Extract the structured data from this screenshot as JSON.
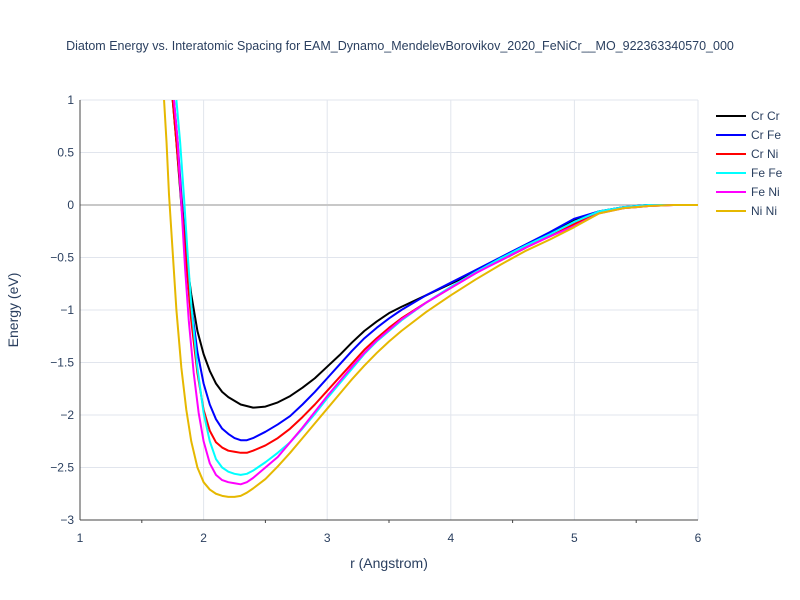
{
  "chart_data": {
    "type": "line",
    "title": "Diatom Energy vs. Interatomic Spacing for EAM_Dynamo_MendelevBorovikov_2020_FeNiCr__MO_922363340570_000",
    "xlabel": "r (Angstrom)",
    "ylabel": "Energy (eV)",
    "xlim": [
      1,
      6
    ],
    "ylim": [
      -3,
      1
    ],
    "x_ticks": [
      1,
      2,
      3,
      4,
      5,
      6
    ],
    "x_tick_labels": [
      "1",
      "2",
      "3",
      "4",
      "5",
      "6"
    ],
    "y_ticks": [
      1,
      0.5,
      0,
      -0.5,
      -1,
      -1.5,
      -2,
      -2.5,
      -3
    ],
    "y_tick_labels": [
      "1",
      "0.5",
      "0",
      "−0.5",
      "−1",
      "−1.5",
      "−2",
      "−2.5",
      "−3"
    ],
    "grid": true,
    "legend_position": "top-right",
    "series": [
      {
        "name": "Cr Cr",
        "color": "#000000",
        "x": [
          1.75,
          1.78,
          1.82,
          1.86,
          1.9,
          1.95,
          2.0,
          2.05,
          2.1,
          2.15,
          2.2,
          2.3,
          2.4,
          2.5,
          2.6,
          2.7,
          2.8,
          2.9,
          3.0,
          3.1,
          3.2,
          3.3,
          3.4,
          3.5,
          3.6,
          3.8,
          4.0,
          4.2,
          4.4,
          4.6,
          4.8,
          5.0,
          5.2,
          5.4,
          5.6,
          5.8,
          6.0
        ],
        "y": [
          1.0,
          0.6,
          0.0,
          -0.5,
          -0.85,
          -1.2,
          -1.42,
          -1.58,
          -1.7,
          -1.78,
          -1.83,
          -1.9,
          -1.93,
          -1.92,
          -1.88,
          -1.82,
          -1.74,
          -1.65,
          -1.54,
          -1.43,
          -1.31,
          -1.2,
          -1.11,
          -1.03,
          -0.97,
          -0.86,
          -0.75,
          -0.64,
          -0.53,
          -0.41,
          -0.28,
          -0.14,
          -0.06,
          -0.02,
          0.0,
          0.0,
          0.0
        ]
      },
      {
        "name": "Cr Fe",
        "color": "#0000ff",
        "x": [
          1.76,
          1.79,
          1.82,
          1.86,
          1.9,
          1.95,
          2.0,
          2.05,
          2.1,
          2.15,
          2.2,
          2.25,
          2.3,
          2.35,
          2.4,
          2.5,
          2.6,
          2.7,
          2.8,
          2.9,
          3.0,
          3.1,
          3.2,
          3.3,
          3.4,
          3.5,
          3.6,
          3.8,
          4.0,
          4.2,
          4.4,
          4.6,
          4.8,
          5.0,
          5.2,
          5.4,
          5.6,
          5.8,
          6.0
        ],
        "y": [
          1.0,
          0.6,
          0.1,
          -0.45,
          -0.95,
          -1.4,
          -1.7,
          -1.9,
          -2.04,
          -2.13,
          -2.18,
          -2.22,
          -2.24,
          -2.24,
          -2.22,
          -2.16,
          -2.09,
          -2.01,
          -1.9,
          -1.78,
          -1.65,
          -1.52,
          -1.39,
          -1.27,
          -1.17,
          -1.08,
          -1.0,
          -0.86,
          -0.74,
          -0.62,
          -0.5,
          -0.38,
          -0.26,
          -0.13,
          -0.06,
          -0.02,
          0.0,
          0.0,
          0.0
        ]
      },
      {
        "name": "Cr Ni",
        "color": "#ff0000",
        "x": [
          1.75,
          1.78,
          1.82,
          1.86,
          1.9,
          1.95,
          2.0,
          2.05,
          2.1,
          2.15,
          2.2,
          2.25,
          2.3,
          2.35,
          2.4,
          2.5,
          2.6,
          2.7,
          2.8,
          2.9,
          3.0,
          3.1,
          3.2,
          3.3,
          3.4,
          3.5,
          3.6,
          3.8,
          4.0,
          4.2,
          4.4,
          4.6,
          4.8,
          5.0,
          5.2,
          5.4,
          5.6,
          5.8,
          6.0
        ],
        "y": [
          1.0,
          0.6,
          0.05,
          -0.55,
          -1.1,
          -1.6,
          -1.95,
          -2.15,
          -2.26,
          -2.31,
          -2.34,
          -2.35,
          -2.36,
          -2.36,
          -2.34,
          -2.29,
          -2.22,
          -2.13,
          -2.02,
          -1.9,
          -1.77,
          -1.64,
          -1.51,
          -1.38,
          -1.27,
          -1.17,
          -1.08,
          -0.93,
          -0.79,
          -0.65,
          -0.52,
          -0.4,
          -0.3,
          -0.18,
          -0.07,
          -0.03,
          -0.01,
          0.0,
          0.0
        ]
      },
      {
        "name": "Fe Fe",
        "color": "#00ffff",
        "x": [
          1.78,
          1.81,
          1.84,
          1.87,
          1.9,
          1.95,
          2.0,
          2.05,
          2.1,
          2.15,
          2.2,
          2.25,
          2.3,
          2.35,
          2.4,
          2.5,
          2.6,
          2.7,
          2.8,
          2.9,
          3.0,
          3.1,
          3.2,
          3.3,
          3.4,
          3.5,
          3.6,
          3.8,
          4.0,
          4.2,
          4.4,
          4.6,
          4.8,
          5.0,
          5.2,
          5.4,
          5.6,
          5.8,
          6.0
        ],
        "y": [
          1.0,
          0.6,
          0.1,
          -0.45,
          -0.95,
          -1.55,
          -1.98,
          -2.25,
          -2.42,
          -2.5,
          -2.54,
          -2.56,
          -2.57,
          -2.56,
          -2.53,
          -2.45,
          -2.36,
          -2.26,
          -2.13,
          -1.99,
          -1.84,
          -1.7,
          -1.56,
          -1.42,
          -1.3,
          -1.2,
          -1.1,
          -0.93,
          -0.78,
          -0.64,
          -0.51,
          -0.39,
          -0.28,
          -0.16,
          -0.06,
          -0.02,
          0.0,
          0.0,
          0.0
        ]
      },
      {
        "name": "Fe Ni",
        "color": "#ff00ff",
        "x": [
          1.76,
          1.79,
          1.82,
          1.85,
          1.88,
          1.92,
          1.96,
          2.0,
          2.05,
          2.1,
          2.15,
          2.2,
          2.25,
          2.3,
          2.35,
          2.4,
          2.5,
          2.6,
          2.7,
          2.8,
          2.9,
          3.0,
          3.1,
          3.2,
          3.3,
          3.4,
          3.5,
          3.6,
          3.8,
          4.0,
          4.2,
          4.4,
          4.6,
          4.8,
          5.0,
          5.2,
          5.4,
          5.6,
          5.8,
          6.0
        ],
        "y": [
          1.0,
          0.6,
          0.0,
          -0.6,
          -1.1,
          -1.6,
          -1.98,
          -2.25,
          -2.46,
          -2.57,
          -2.62,
          -2.64,
          -2.65,
          -2.66,
          -2.64,
          -2.6,
          -2.5,
          -2.4,
          -2.26,
          -2.12,
          -1.97,
          -1.82,
          -1.68,
          -1.54,
          -1.41,
          -1.29,
          -1.19,
          -1.09,
          -0.93,
          -0.79,
          -0.65,
          -0.53,
          -0.41,
          -0.3,
          -0.2,
          -0.08,
          -0.03,
          -0.01,
          0.0,
          0.0
        ]
      },
      {
        "name": "Ni Ni",
        "color": "#e6b800",
        "x": [
          1.68,
          1.7,
          1.72,
          1.75,
          1.78,
          1.82,
          1.86,
          1.9,
          1.95,
          2.0,
          2.05,
          2.1,
          2.15,
          2.2,
          2.25,
          2.3,
          2.35,
          2.4,
          2.5,
          2.6,
          2.7,
          2.8,
          2.9,
          3.0,
          3.1,
          3.2,
          3.3,
          3.4,
          3.5,
          3.6,
          3.8,
          4.0,
          4.2,
          4.4,
          4.6,
          4.8,
          5.0,
          5.2,
          5.4,
          5.6,
          5.8,
          6.0
        ],
        "y": [
          1.0,
          0.6,
          0.1,
          -0.45,
          -1.0,
          -1.55,
          -1.95,
          -2.25,
          -2.5,
          -2.64,
          -2.71,
          -2.75,
          -2.77,
          -2.78,
          -2.78,
          -2.77,
          -2.74,
          -2.7,
          -2.61,
          -2.49,
          -2.36,
          -2.22,
          -2.08,
          -1.94,
          -1.8,
          -1.66,
          -1.53,
          -1.41,
          -1.3,
          -1.2,
          -1.02,
          -0.86,
          -0.71,
          -0.57,
          -0.44,
          -0.33,
          -0.21,
          -0.08,
          -0.03,
          -0.01,
          0.0,
          0.0
        ]
      }
    ]
  }
}
